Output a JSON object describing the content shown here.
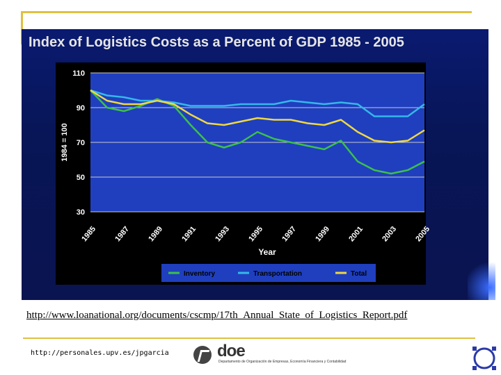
{
  "slide": {
    "title": "Index of Logistics Costs as a Percent of GDP 1985 - 2005",
    "source_url": "http://www.loanational.org/documents/cscmp/17th_Annual_State_of_Logistics_Report.pdf",
    "footer_url": "http://personales.upv.es/jpgarcia",
    "logo_text": "doe",
    "logo_subtitle": "Departamento de Organización de Empresas, Economía Financiera y Contabilidad"
  },
  "colors": {
    "slide_background": "#0a1450",
    "plot_area": "#1f3fbf",
    "gridline": "#c8c8c8",
    "title_text": "#e6e6e6",
    "accent_rule": "#e0c040"
  },
  "chart_data": {
    "type": "line",
    "title": "",
    "xlabel": "Year",
    "ylabel": "1984 = 100",
    "ylim": [
      30,
      110
    ],
    "yticks": [
      110,
      90,
      70,
      50,
      30
    ],
    "grid": true,
    "legend_position": "bottom",
    "x": [
      1985,
      1986,
      1987,
      1988,
      1989,
      1990,
      1991,
      1992,
      1993,
      1994,
      1995,
      1996,
      1997,
      1998,
      1999,
      2000,
      2001,
      2002,
      2003,
      2004,
      2005
    ],
    "xtick_labels": [
      "1985",
      "1987",
      "1989",
      "1991",
      "1993",
      "1995",
      "1997",
      "1999",
      "2001",
      "2003",
      "2005"
    ],
    "series": [
      {
        "name": "Inventory",
        "color": "#3cc04a",
        "values": [
          100,
          90,
          88,
          91,
          95,
          91,
          80,
          70,
          67,
          70,
          76,
          72,
          70,
          68,
          66,
          71,
          59,
          54,
          52,
          54,
          59
        ]
      },
      {
        "name": "Transportation",
        "color": "#35b8e8",
        "values": [
          100,
          97,
          96,
          94,
          94,
          93,
          91,
          91,
          91,
          92,
          92,
          92,
          94,
          93,
          92,
          93,
          92,
          85,
          85,
          85,
          92
        ]
      },
      {
        "name": "Total",
        "color": "#f0d840",
        "values": [
          100,
          94,
          92,
          92,
          94,
          92,
          86,
          81,
          80,
          82,
          84,
          83,
          83,
          81,
          80,
          83,
          76,
          71,
          70,
          71,
          77
        ]
      }
    ]
  }
}
